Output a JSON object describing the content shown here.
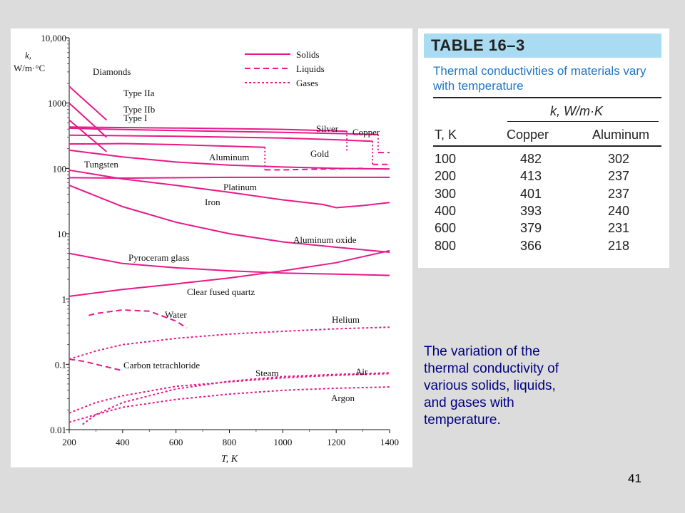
{
  "chart_data": {
    "type": "line",
    "title": "",
    "xlabel": "T, K",
    "ylabel": "k,\nW/m·°C",
    "xlim": [
      200,
      1400
    ],
    "ylim": [
      0.01,
      10000
    ],
    "yscale": "log",
    "grid": false,
    "legend_position": "top-right",
    "x_ticks": [
      "200",
      "400",
      "600",
      "800",
      "1000",
      "1200",
      "1400"
    ],
    "y_ticks": [
      "10,000",
      "1000",
      "100",
      "10",
      "1",
      "0.1",
      "0.01"
    ],
    "legend": [
      {
        "label": "Solids",
        "style": "solid"
      },
      {
        "label": "Liquids",
        "style": "dashed"
      },
      {
        "label": "Gases",
        "style": "dotted"
      }
    ],
    "series": [
      {
        "name": "Type IIa",
        "phase": "solid",
        "x": [
          200,
          340
        ],
        "y": [
          1800,
          550
        ]
      },
      {
        "name": "Type IIb",
        "phase": "solid",
        "x": [
          200,
          340
        ],
        "y": [
          1000,
          300
        ]
      },
      {
        "name": "Type I",
        "phase": "solid",
        "x": [
          200,
          340
        ],
        "y": [
          550,
          180
        ]
      },
      {
        "name": "Silver",
        "phase": "solid",
        "x": [
          200,
          600,
          1000,
          1200,
          1240
        ],
        "y": [
          430,
          415,
          395,
          375,
          370
        ]
      },
      {
        "name": "Copper",
        "phase": "solid",
        "x": [
          200,
          300,
          600,
          1000,
          1200,
          1357
        ],
        "y": [
          413,
          401,
          379,
          357,
          342,
          330
        ]
      },
      {
        "name": "Copper",
        "phase": "liquid",
        "x": [
          1357,
          1400
        ],
        "y": [
          175,
          175
        ]
      },
      {
        "name": "Gold",
        "phase": "solid",
        "x": [
          200,
          600,
          1000,
          1200,
          1336
        ],
        "y": [
          323,
          311,
          292,
          275,
          260
        ]
      },
      {
        "name": "Gold",
        "phase": "liquid",
        "x": [
          1336,
          1400
        ],
        "y": [
          115,
          115
        ]
      },
      {
        "name": "Aluminum",
        "phase": "solid",
        "x": [
          200,
          300,
          400,
          600,
          800,
          933
        ],
        "y": [
          237,
          237,
          240,
          231,
          218,
          210
        ]
      },
      {
        "name": "Aluminum",
        "phase": "liquid",
        "x": [
          933,
          1000,
          1300
        ],
        "y": [
          95,
          95,
          100
        ]
      },
      {
        "name": "Tungsten",
        "phase": "solid",
        "x": [
          200,
          400,
          600,
          800,
          1000,
          1200,
          1400
        ],
        "y": [
          190,
          150,
          125,
          112,
          105,
          100,
          98
        ]
      },
      {
        "name": "Platinum",
        "phase": "solid",
        "x": [
          200,
          400,
          800,
          1400
        ],
        "y": [
          72,
          71,
          73,
          73
        ]
      },
      {
        "name": "Iron",
        "phase": "solid",
        "x": [
          200,
          400,
          600,
          800,
          1000,
          1150,
          1200,
          1300,
          1400
        ],
        "y": [
          94,
          69,
          55,
          43,
          33,
          28,
          25,
          27,
          30
        ]
      },
      {
        "name": "Aluminum oxide",
        "phase": "solid",
        "x": [
          200,
          400,
          600,
          800,
          1000,
          1200,
          1400
        ],
        "y": [
          55,
          26,
          15,
          10,
          7.5,
          6.2,
          5.2
        ]
      },
      {
        "name": "Pyroceram glass",
        "phase": "solid",
        "x": [
          200,
          400,
          600,
          800,
          1000,
          1200,
          1400
        ],
        "y": [
          5,
          3.5,
          3,
          2.7,
          2.5,
          2.4,
          2.3
        ]
      },
      {
        "name": "Clear fused quartz",
        "phase": "solid",
        "x": [
          200,
          400,
          600,
          800,
          1000,
          1200,
          1400
        ],
        "y": [
          1.1,
          1.4,
          1.7,
          2.1,
          2.7,
          3.6,
          5.5
        ]
      },
      {
        "name": "Water",
        "phase": "liquid",
        "x": [
          273,
          300,
          400,
          500,
          600,
          640
        ],
        "y": [
          0.56,
          0.6,
          0.68,
          0.65,
          0.46,
          0.36
        ]
      },
      {
        "name": "Carbon tetrachloride",
        "phase": "liquid",
        "x": [
          200,
          260,
          300,
          400
        ],
        "y": [
          0.12,
          0.11,
          0.1,
          0.08
        ]
      },
      {
        "name": "Helium",
        "phase": "gas",
        "x": [
          200,
          300,
          400,
          600,
          800,
          1000,
          1200,
          1400
        ],
        "y": [
          0.12,
          0.16,
          0.2,
          0.25,
          0.29,
          0.32,
          0.35,
          0.37
        ]
      },
      {
        "name": "Air",
        "phase": "gas",
        "x": [
          200,
          300,
          400,
          600,
          800,
          1000,
          1200,
          1400
        ],
        "y": [
          0.018,
          0.026,
          0.033,
          0.046,
          0.054,
          0.062,
          0.068,
          0.072
        ]
      },
      {
        "name": "Steam",
        "phase": "gas",
        "x": [
          250,
          300,
          400,
          600,
          800,
          1000,
          1200,
          1400
        ],
        "y": [
          0.012,
          0.017,
          0.026,
          0.042,
          0.055,
          0.065,
          0.07,
          0.074
        ]
      },
      {
        "name": "Argon",
        "phase": "gas",
        "x": [
          200,
          300,
          400,
          600,
          800,
          1000,
          1200,
          1400
        ],
        "y": [
          0.013,
          0.017,
          0.022,
          0.029,
          0.035,
          0.04,
          0.043,
          0.045
        ]
      }
    ],
    "annotations": [
      "Diamonds"
    ]
  },
  "table": {
    "title": "TABLE 16–3",
    "caption": "Thermal conductivities of materials vary with temperature",
    "group_header": "k, W/m·K",
    "columns": [
      "T, K",
      "Copper",
      "Aluminum"
    ],
    "rows": [
      [
        "100",
        "482",
        "302"
      ],
      [
        "200",
        "413",
        "237"
      ],
      [
        "300",
        "401",
        "237"
      ],
      [
        "400",
        "393",
        "240"
      ],
      [
        "600",
        "379",
        "231"
      ],
      [
        "800",
        "366",
        "218"
      ]
    ]
  },
  "side_caption": "The variation of the thermal conductivity of various solids, liquids, and gases with temperature.",
  "page_number": "41",
  "colors": {
    "curve": "#e8198a",
    "table_title_bg": "#a9dcf2",
    "table_caption": "#1f75c8",
    "side_caption": "#000080",
    "background": "#dcdcdc"
  }
}
